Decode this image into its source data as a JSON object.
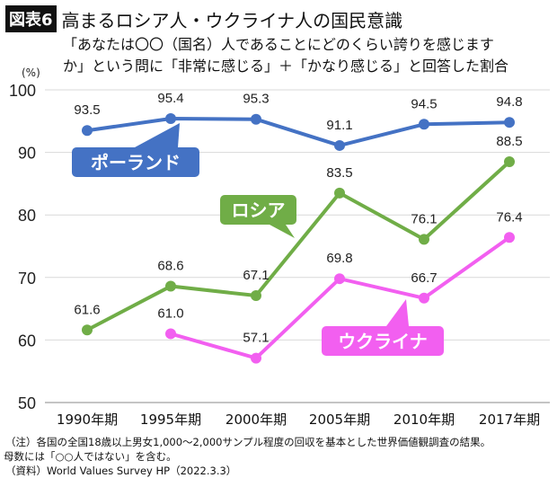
{
  "header": {
    "badge": "図表6",
    "title": "高まるロシア人・ウクライナ人の国民意識"
  },
  "subtitle": [
    "「あなたは〇〇（国名）人であることにどのくらい誇りを感じます",
    "か」という問に「非常に感じる」＋「かなり感じる」と回答した割合"
  ],
  "chart_data": {
    "type": "line",
    "ylabel": "(%)",
    "ylim": [
      50,
      100
    ],
    "yticks": [
      50,
      60,
      70,
      80,
      90,
      100
    ],
    "grid": true,
    "categories": [
      "1990年期",
      "1995年期",
      "2000年期",
      "2005年期",
      "2010年期",
      "2017年期"
    ],
    "series": [
      {
        "name": "ポーランド",
        "color": "#4472c4",
        "values": [
          93.5,
          95.4,
          95.3,
          91.1,
          94.5,
          94.8
        ]
      },
      {
        "name": "ロシア",
        "color": "#70ad47",
        "values": [
          61.6,
          68.6,
          67.1,
          83.5,
          76.1,
          88.5
        ]
      },
      {
        "name": "ウクライナ",
        "color": "#f25ff0",
        "values": [
          null,
          61.0,
          57.1,
          69.8,
          66.7,
          76.4
        ]
      }
    ]
  },
  "notes": [
    "（注）各国の全国18歳以上男女1,000～2,000サンプル程度の回収を基本とした世界価値観調査の結果。",
    "母数には「○○人ではない」を含む。",
    "（資料）World Values Survey HP（2022.3.3）"
  ]
}
